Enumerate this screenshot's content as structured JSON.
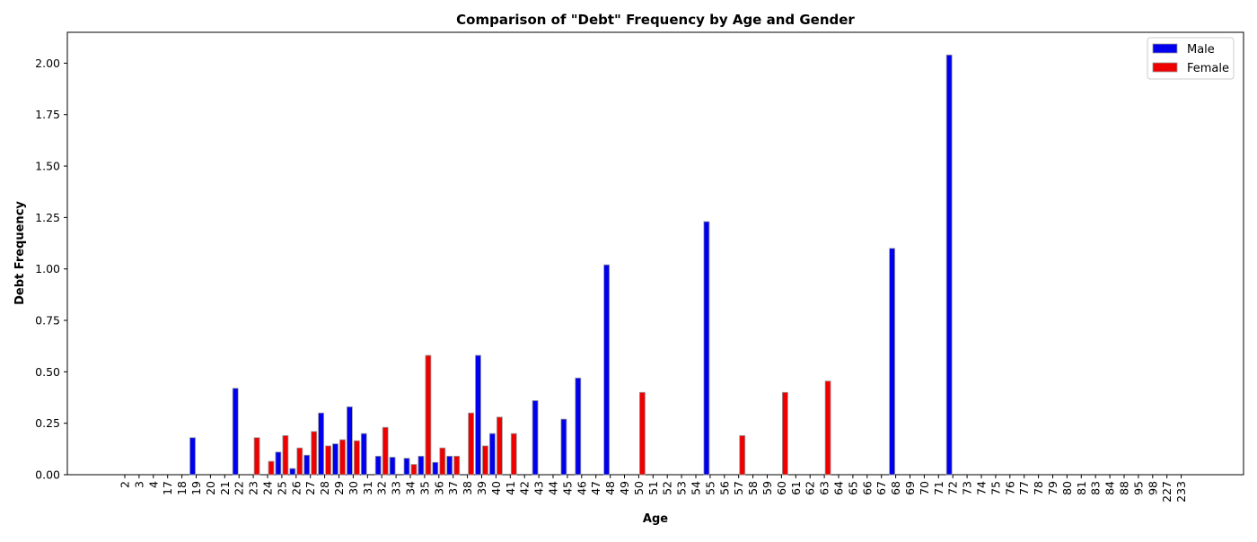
{
  "chart_data": {
    "type": "bar",
    "title": "Comparison of \"Debt\" Frequency by Age and Gender",
    "xlabel": "Age",
    "ylabel": "Debt Frequency",
    "ylim": [
      0,
      2.15
    ],
    "yticks": [
      "0.00",
      "0.25",
      "0.50",
      "0.75",
      "1.00",
      "1.25",
      "1.50",
      "1.75",
      "2.00"
    ],
    "legend_position": "top-right",
    "categories": [
      "2",
      "3",
      "4",
      "17",
      "18",
      "19",
      "20",
      "21",
      "22",
      "23",
      "24",
      "25",
      "26",
      "27",
      "28",
      "29",
      "30",
      "31",
      "32",
      "33",
      "34",
      "35",
      "36",
      "37",
      "38",
      "39",
      "40",
      "41",
      "42",
      "43",
      "44",
      "45",
      "46",
      "47",
      "48",
      "49",
      "50",
      "51",
      "52",
      "53",
      "54",
      "55",
      "56",
      "57",
      "58",
      "59",
      "60",
      "61",
      "62",
      "63",
      "64",
      "65",
      "66",
      "67",
      "68",
      "69",
      "70",
      "71",
      "72",
      "73",
      "74",
      "75",
      "76",
      "77",
      "78",
      "79",
      "80",
      "81",
      "83",
      "84",
      "88",
      "95",
      "98",
      "227",
      "233"
    ],
    "series": [
      {
        "name": "Male",
        "color": "#0000ee",
        "values": [
          0,
          0,
          0,
          0,
          0,
          0.18,
          0,
          0,
          0.42,
          0,
          0,
          0.11,
          0.03,
          0.095,
          0.3,
          0.15,
          0.33,
          0.2,
          0.09,
          0.085,
          0.08,
          0.09,
          0.06,
          0.09,
          0,
          0.58,
          0.2,
          0,
          0,
          0.36,
          0,
          0.27,
          0.47,
          0,
          1.02,
          0,
          0,
          0,
          0,
          0,
          0,
          1.23,
          0,
          0,
          0,
          0,
          0,
          0,
          0,
          0,
          0,
          0,
          0,
          0,
          1.1,
          0,
          0,
          0,
          2.04,
          0,
          0,
          0,
          0,
          0,
          0,
          0,
          0,
          0,
          0,
          0,
          0,
          0,
          0,
          0,
          0
        ]
      },
      {
        "name": "Female",
        "color": "#ee0000",
        "values": [
          0,
          0,
          0,
          0,
          0,
          0,
          0,
          0,
          0,
          0.18,
          0.065,
          0.19,
          0.13,
          0.21,
          0.14,
          0.17,
          0.165,
          0,
          0.23,
          0,
          0.05,
          0.58,
          0.13,
          0.09,
          0.3,
          0.14,
          0.28,
          0.2,
          0,
          0,
          0,
          0,
          0,
          0,
          0,
          0,
          0.4,
          0,
          0,
          0,
          0,
          0,
          0,
          0.19,
          0,
          0,
          0.4,
          0,
          0,
          0.455,
          0,
          0,
          0,
          0,
          0,
          0,
          0,
          0,
          0,
          0,
          0,
          0,
          0,
          0,
          0,
          0,
          0,
          0,
          0,
          0,
          0,
          0,
          0,
          0,
          0
        ]
      }
    ]
  }
}
